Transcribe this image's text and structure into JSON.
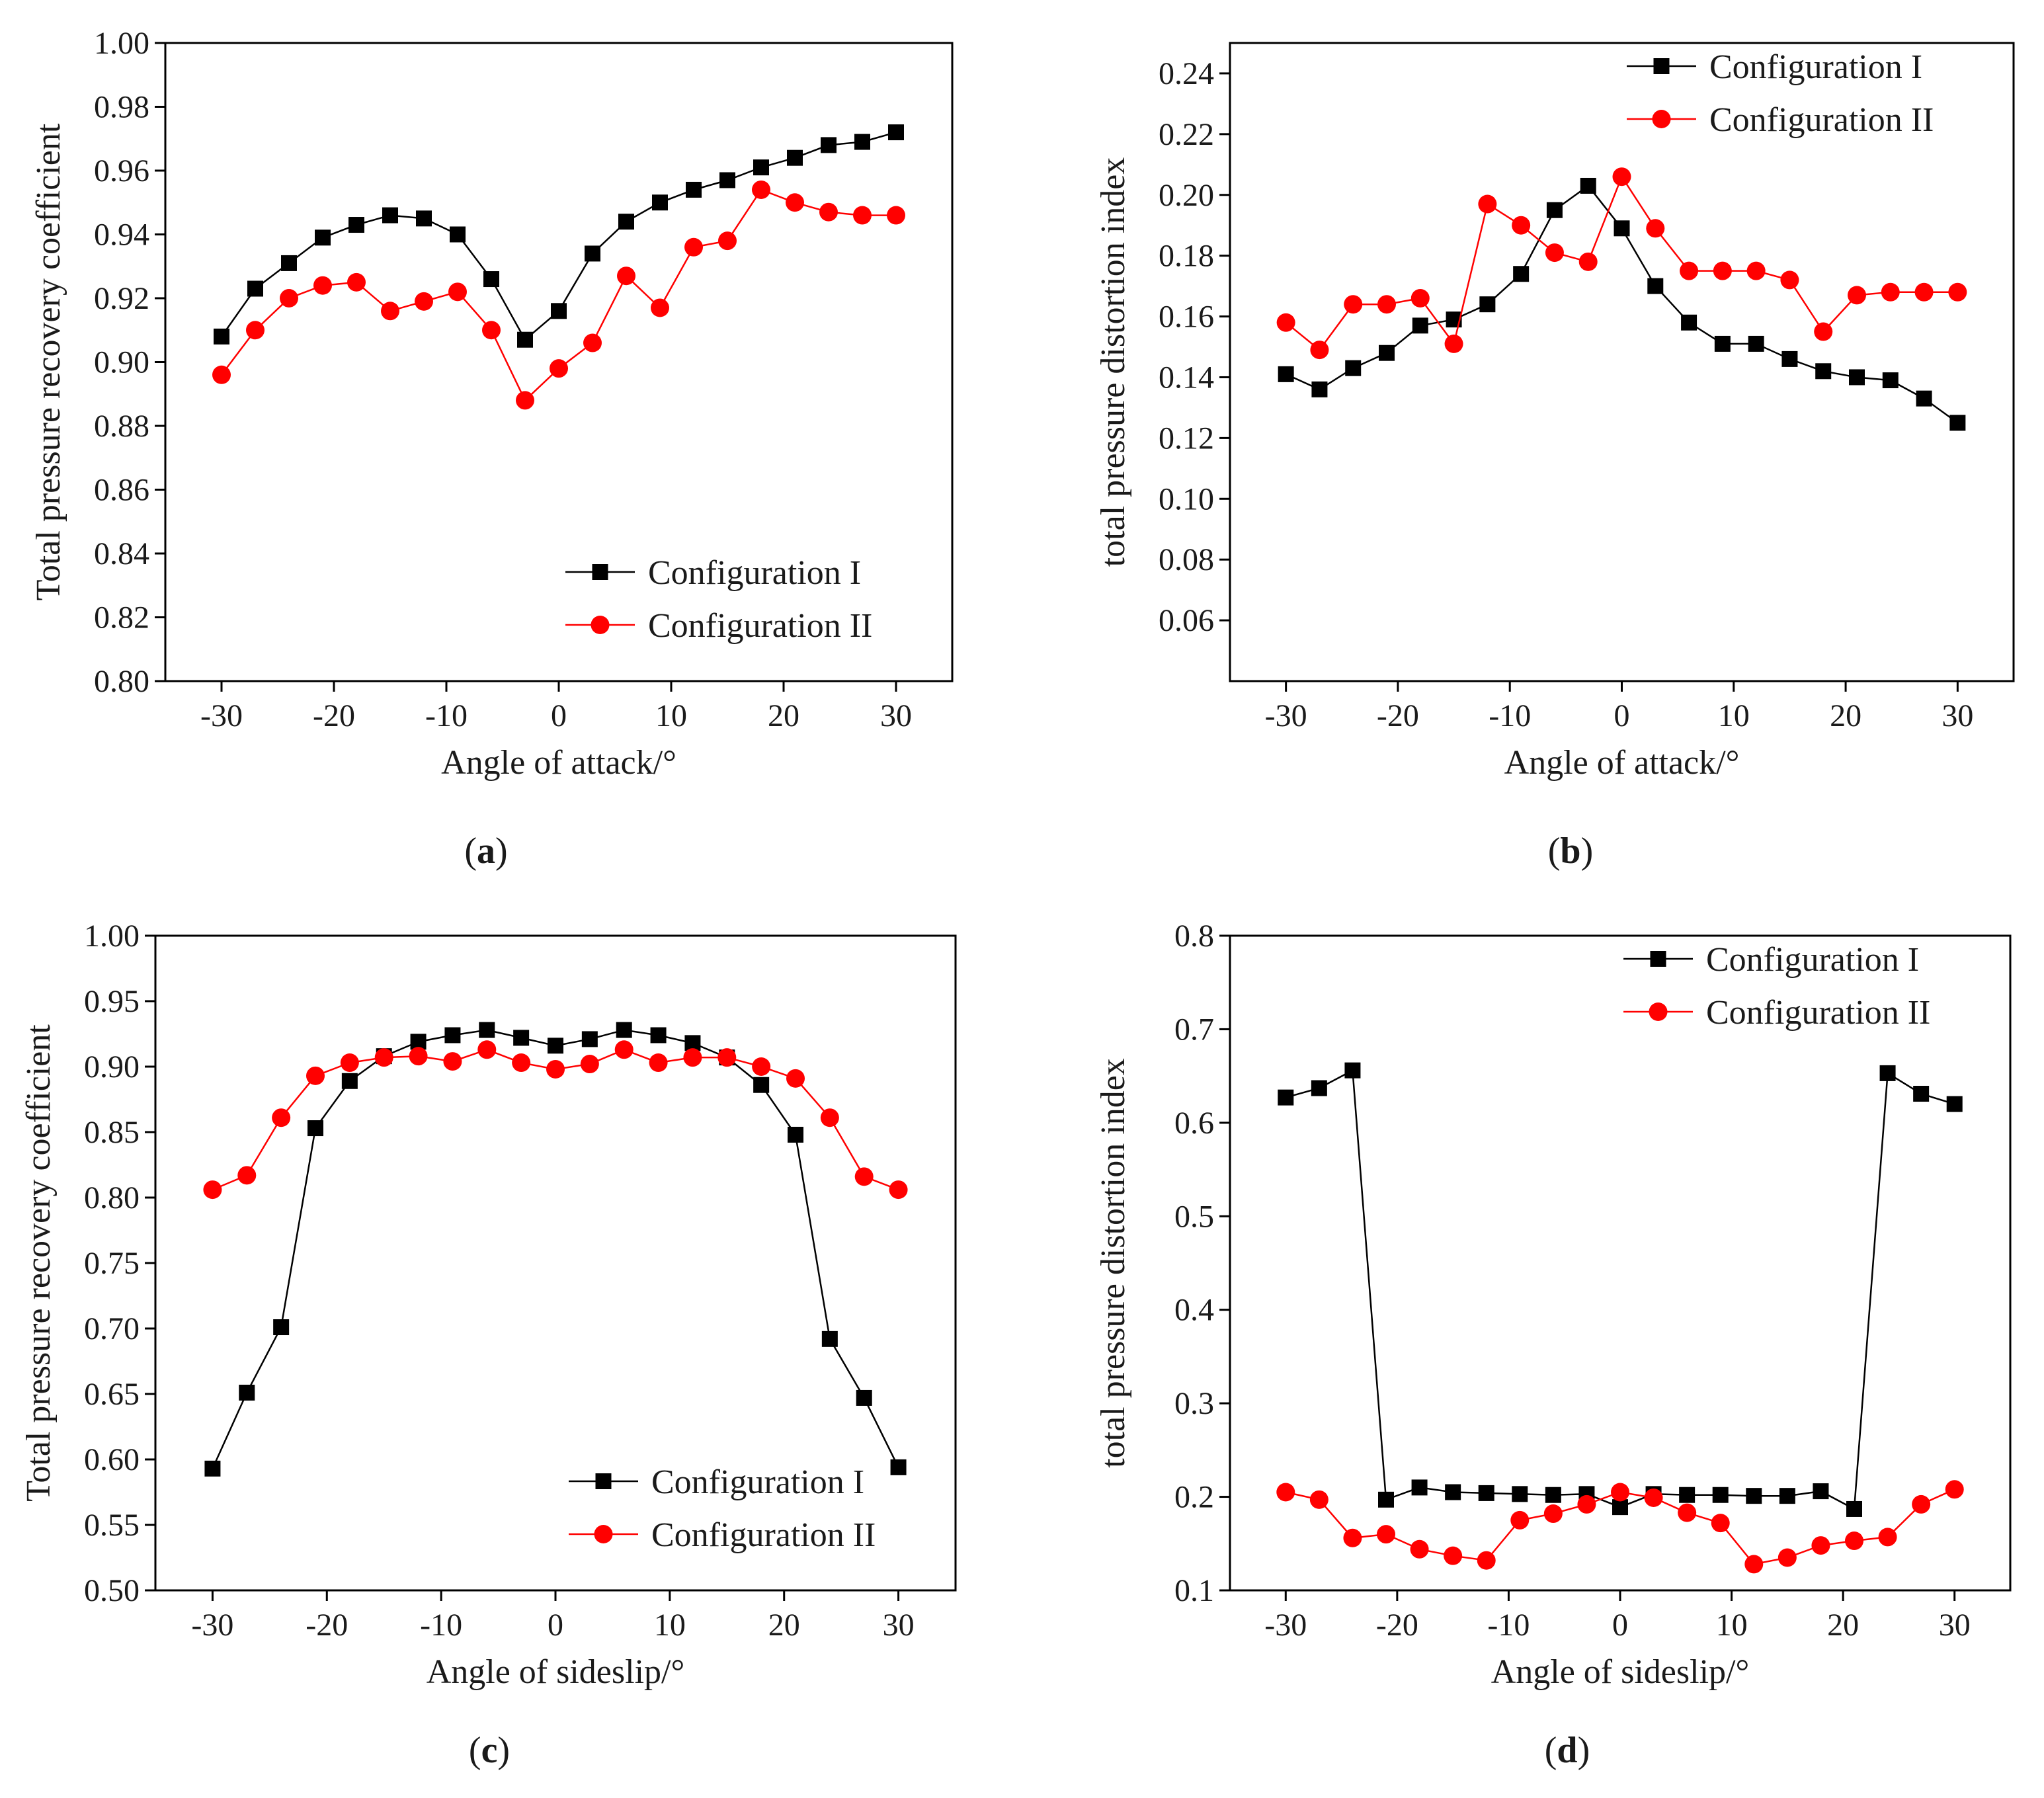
{
  "chart_data": [
    {
      "panel": "a",
      "type": "line",
      "xlabel": "Angle of attack/°",
      "ylabel": "Total pressure recovery coefficient",
      "xlim": [
        -35,
        35
      ],
      "ylim": [
        0.8,
        1.0
      ],
      "xticks": [
        -30,
        -20,
        -10,
        0,
        10,
        20,
        30
      ],
      "yticks": [
        0.8,
        0.82,
        0.84,
        0.86,
        0.88,
        0.9,
        0.92,
        0.94,
        0.96,
        0.98,
        1.0
      ],
      "ytick_decimals": 2,
      "legend_position": "bottom-right",
      "x": [
        -30,
        -27,
        -24,
        -21,
        -18,
        -15,
        -12,
        -9,
        -6,
        -3,
        0,
        3,
        6,
        9,
        12,
        15,
        18,
        21,
        24,
        27,
        30
      ],
      "series": [
        {
          "name": "Configuration I",
          "marker": "square",
          "color": "#000000",
          "values": [
            0.908,
            0.923,
            0.931,
            0.939,
            0.943,
            0.946,
            0.945,
            0.94,
            0.926,
            0.907,
            0.916,
            0.934,
            0.944,
            0.95,
            0.954,
            0.957,
            0.961,
            0.964,
            0.968,
            0.969,
            0.972
          ]
        },
        {
          "name": "Configuration II",
          "marker": "circle",
          "color": "#ff0000",
          "values": [
            0.896,
            0.91,
            0.92,
            0.924,
            0.925,
            0.916,
            0.919,
            0.922,
            0.91,
            0.888,
            0.898,
            0.906,
            0.927,
            0.917,
            0.936,
            0.938,
            0.954,
            0.95,
            0.947,
            0.946,
            0.946
          ]
        }
      ]
    },
    {
      "panel": "b",
      "type": "line",
      "xlabel": "Angle of attack/°",
      "ylabel": "total pressure distortion index",
      "xlim": [
        -35,
        35
      ],
      "ylim": [
        0.04,
        0.25
      ],
      "xticks": [
        -30,
        -20,
        -10,
        0,
        10,
        20,
        30
      ],
      "yticks": [
        0.06,
        0.08,
        0.1,
        0.12,
        0.14,
        0.16,
        0.18,
        0.2,
        0.22,
        0.24
      ],
      "ytick_decimals": 2,
      "legend_position": "top-right",
      "x": [
        -30,
        -27,
        -24,
        -21,
        -18,
        -15,
        -12,
        -9,
        -6,
        -3,
        0,
        3,
        6,
        9,
        12,
        15,
        18,
        21,
        24,
        27,
        30
      ],
      "series": [
        {
          "name": "Configuration I",
          "marker": "square",
          "color": "#000000",
          "values": [
            0.141,
            0.136,
            0.143,
            0.148,
            0.157,
            0.159,
            0.164,
            0.174,
            0.195,
            0.203,
            0.189,
            0.17,
            0.158,
            0.151,
            0.151,
            0.146,
            0.142,
            0.14,
            0.139,
            0.133,
            0.125
          ]
        },
        {
          "name": "Configuration II",
          "marker": "circle",
          "color": "#ff0000",
          "values": [
            0.158,
            0.149,
            0.164,
            0.164,
            0.166,
            0.151,
            0.197,
            0.19,
            0.181,
            0.178,
            0.206,
            0.189,
            0.175,
            0.175,
            0.175,
            0.172,
            0.155,
            0.167,
            0.168,
            0.168,
            0.168
          ]
        }
      ]
    },
    {
      "panel": "c",
      "type": "line",
      "xlabel": "Angle of sideslip/°",
      "ylabel": "Total pressure recovery coefficient",
      "xlim": [
        -35,
        35
      ],
      "ylim": [
        0.5,
        1.0
      ],
      "xticks": [
        -30,
        -20,
        -10,
        0,
        10,
        20,
        30
      ],
      "yticks": [
        0.5,
        0.55,
        0.6,
        0.65,
        0.7,
        0.75,
        0.8,
        0.85,
        0.9,
        0.95,
        1.0
      ],
      "ytick_decimals": 2,
      "legend_position": "bottom-right",
      "x": [
        -30,
        -27,
        -24,
        -21,
        -18,
        -15,
        -12,
        -9,
        -6,
        -3,
        0,
        3,
        6,
        9,
        12,
        15,
        18,
        21,
        24,
        27,
        30
      ],
      "series": [
        {
          "name": "Configuration I",
          "marker": "square",
          "color": "#000000",
          "values": [
            0.593,
            0.651,
            0.701,
            0.853,
            0.889,
            0.908,
            0.919,
            0.924,
            0.928,
            0.922,
            0.916,
            0.921,
            0.928,
            0.924,
            0.918,
            0.907,
            0.886,
            0.848,
            0.692,
            0.647,
            0.594
          ]
        },
        {
          "name": "Configuration II",
          "marker": "circle",
          "color": "#ff0000",
          "values": [
            0.806,
            0.817,
            0.861,
            0.893,
            0.903,
            0.907,
            0.908,
            0.904,
            0.913,
            0.903,
            0.898,
            0.902,
            0.913,
            0.903,
            0.907,
            0.907,
            0.9,
            0.891,
            0.861,
            0.816,
            0.806
          ]
        }
      ]
    },
    {
      "panel": "d",
      "type": "line",
      "xlabel": "Angle of sideslip/°",
      "ylabel": "total pressure distortion index",
      "xlim": [
        -35,
        35
      ],
      "ylim": [
        0.1,
        0.8
      ],
      "xticks": [
        -30,
        -20,
        -10,
        0,
        10,
        20,
        30
      ],
      "yticks": [
        0.1,
        0.2,
        0.3,
        0.4,
        0.5,
        0.6,
        0.7,
        0.8
      ],
      "ytick_decimals": 1,
      "legend_position": "top-right",
      "x": [
        -30,
        -27,
        -24,
        -21,
        -18,
        -15,
        -12,
        -9,
        -6,
        -3,
        0,
        3,
        6,
        9,
        12,
        15,
        18,
        21,
        24,
        27,
        30
      ],
      "series": [
        {
          "name": "Configuration I",
          "marker": "square",
          "color": "#000000",
          "values": [
            0.627,
            0.637,
            0.656,
            0.197,
            0.21,
            0.205,
            0.204,
            0.203,
            0.202,
            0.203,
            0.189,
            0.203,
            0.202,
            0.202,
            0.201,
            0.201,
            0.206,
            0.187,
            0.653,
            0.631,
            0.62
          ]
        },
        {
          "name": "Configuration II",
          "marker": "circle",
          "color": "#ff0000",
          "values": [
            0.205,
            0.197,
            0.156,
            0.16,
            0.144,
            0.137,
            0.132,
            0.175,
            0.182,
            0.192,
            0.205,
            0.199,
            0.183,
            0.172,
            0.128,
            0.135,
            0.148,
            0.153,
            0.157,
            0.192,
            0.208
          ]
        }
      ]
    }
  ],
  "panel_labels": [
    {
      "open": "(",
      "letter": "a",
      "close": ")"
    },
    {
      "open": "(",
      "letter": "b",
      "close": ")"
    },
    {
      "open": "(",
      "letter": "c",
      "close": ")"
    },
    {
      "open": "(",
      "letter": "d",
      "close": ")"
    }
  ]
}
